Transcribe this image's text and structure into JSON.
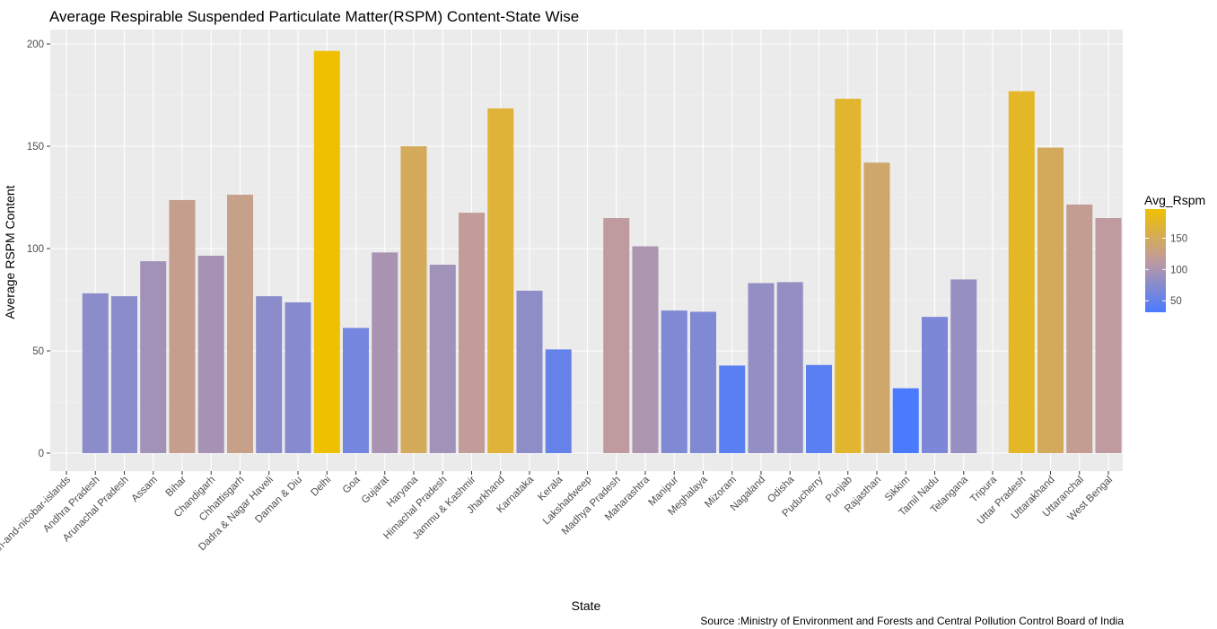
{
  "chart_data": {
    "type": "bar",
    "title": "Average Respirable Suspended Particulate Matter(RSPM) Content-State Wise",
    "xlabel": "State",
    "ylabel": "Average RSPM Content",
    "caption": "Source :Ministry of Environment and Forests and Central Pollution Control Board of India",
    "ylim": [
      0,
      210
    ],
    "yticks": [
      0,
      50,
      100,
      150,
      200
    ],
    "grid": true,
    "legend": {
      "title": "Avg_Rspm",
      "position": "right",
      "breaks": [
        50,
        100,
        150
      ],
      "range": [
        31.7,
        196.6
      ],
      "low_color": "#4a7bff",
      "mid_color": "#bf9aa0",
      "high_color": "#efc000"
    },
    "panel_background": "#ebebeb",
    "categories": [
      "andaman-and-nicobar-islands",
      "Andhra Pradesh",
      "Arunachal Pradesh",
      "Assam",
      "Bihar",
      "Chandigarh",
      "Chhattisgarh",
      "Dadra & Nagar Haveli",
      "Daman & Diu",
      "Delhi",
      "Goa",
      "Gujarat",
      "Haryana",
      "Himachal Pradesh",
      "Jammu & Kashmir",
      "Jharkhand",
      "Karnataka",
      "Kerala",
      "Lakshadweep",
      "Madhya Pradesh",
      "Maharashtra",
      "Manipur",
      "Meghalaya",
      "Mizoram",
      "Nagaland",
      "Odisha",
      "Puducherry",
      "Punjab",
      "Rajasthan",
      "Sikkim",
      "Tamil Nadu",
      "Telangana",
      "Tripura",
      "Uttar Pradesh",
      "Uttarakhand",
      "Uttaranchal",
      "West Bengal"
    ],
    "values": [
      null,
      78.1,
      76.7,
      93.8,
      123.7,
      96.5,
      126.3,
      76.7,
      73.7,
      196.6,
      61.2,
      98.1,
      150.0,
      92.1,
      117.5,
      168.5,
      79.4,
      50.7,
      null,
      114.9,
      101.1,
      69.7,
      69.1,
      42.8,
      83.1,
      83.6,
      43.1,
      173.2,
      142.0,
      31.7,
      66.6,
      84.9,
      null,
      176.9,
      149.3,
      121.5,
      114.9
    ]
  }
}
